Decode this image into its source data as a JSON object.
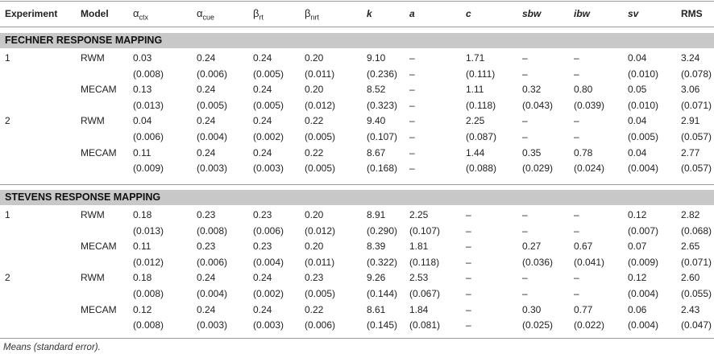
{
  "columns": [
    {
      "key": "experiment",
      "label": "Experiment"
    },
    {
      "key": "model",
      "label": "Model"
    },
    {
      "key": "a_ctx",
      "label": "α",
      "sub": "ctx"
    },
    {
      "key": "a_cue",
      "label": "α",
      "sub": "cue"
    },
    {
      "key": "b_rt",
      "label": "β",
      "sub": "rt"
    },
    {
      "key": "b_nrt",
      "label": "β",
      "sub": "nrt"
    },
    {
      "key": "k",
      "label": "k"
    },
    {
      "key": "a",
      "label": "a"
    },
    {
      "key": "c",
      "label": "c"
    },
    {
      "key": "sbw",
      "label": "sbw"
    },
    {
      "key": "ibw",
      "label": "ibw"
    },
    {
      "key": "sv",
      "label": "sv"
    },
    {
      "key": "rms",
      "label": "RMS"
    }
  ],
  "sections": [
    {
      "title": "FECHNER RESPONSE MAPPING",
      "rows": [
        {
          "cells": [
            "1",
            "RWM",
            "0.03",
            "0.24",
            "0.24",
            "0.20",
            "9.10",
            "–",
            "1.71",
            "–",
            "–",
            "0.04",
            "3.24"
          ]
        },
        {
          "cells": [
            "",
            "",
            "(0.008)",
            "(0.006)",
            "(0.005)",
            "(0.011)",
            "(0.236)",
            "–",
            "(0.111)",
            "–",
            "–",
            "(0.010)",
            "(0.078)"
          ]
        },
        {
          "cells": [
            "",
            "MECAM",
            "0.13",
            "0.24",
            "0.24",
            "0.20",
            "8.52",
            "–",
            "1.11",
            "0.32",
            "0.80",
            "0.05",
            "3.06"
          ]
        },
        {
          "cells": [
            "",
            "",
            "(0.013)",
            "(0.005)",
            "(0.005)",
            "(0.012)",
            "(0.323)",
            "–",
            "(0.118)",
            "(0.043)",
            "(0.039)",
            "(0.010)",
            "(0.071)"
          ]
        },
        {
          "cells": [
            "2",
            "RWM",
            "0.04",
            "0.24",
            "0.24",
            "0.22",
            "9.40",
            "–",
            "2.25",
            "–",
            "–",
            "0.04",
            "2.91"
          ]
        },
        {
          "cells": [
            "",
            "",
            "(0.006)",
            "(0.004)",
            "(0.002)",
            "(0.005)",
            "(0.107)",
            "–",
            "(0.087)",
            "–",
            "–",
            "(0.005)",
            "(0.057)"
          ]
        },
        {
          "cells": [
            "",
            "MECAM",
            "0.11",
            "0.24",
            "0.24",
            "0.22",
            "8.67",
            "–",
            "1.44",
            "0.35",
            "0.78",
            "0.04",
            "2.77"
          ]
        },
        {
          "cells": [
            "",
            "",
            "(0.009)",
            "(0.003)",
            "(0.003)",
            "(0.005)",
            "(0.168)",
            "–",
            "(0.088)",
            "(0.029)",
            "(0.024)",
            "(0.004)",
            "(0.057)"
          ]
        }
      ]
    },
    {
      "title": "STEVENS RESPONSE MAPPING",
      "rows": [
        {
          "cells": [
            "1",
            "RWM",
            "0.18",
            "0.23",
            "0.23",
            "0.20",
            "8.91",
            "2.25",
            "–",
            "–",
            "–",
            "0.12",
            "2.82"
          ]
        },
        {
          "cells": [
            "",
            "",
            "(0.013)",
            "(0.008)",
            "(0.006)",
            "(0.012)",
            "(0.290)",
            "(0.107)",
            "–",
            "–",
            "–",
            "(0.007)",
            "(0.068)"
          ]
        },
        {
          "cells": [
            "",
            "MECAM",
            "0.11",
            "0.23",
            "0.23",
            "0.20",
            "8.39",
            "1.81",
            "–",
            "0.27",
            "0.67",
            "0.07",
            "2.65"
          ]
        },
        {
          "cells": [
            "",
            "",
            "(0.012)",
            "(0.006)",
            "(0.004)",
            "(0.011)",
            "(0.322)",
            "(0.118)",
            "–",
            "(0.036)",
            "(0.041)",
            "(0.009)",
            "(0.071)"
          ]
        },
        {
          "cells": [
            "2",
            "RWM",
            "0.18",
            "0.24",
            "0.24",
            "0.23",
            "9.26",
            "2.53",
            "–",
            "–",
            "–",
            "0.12",
            "2.60"
          ]
        },
        {
          "cells": [
            "",
            "",
            "(0.008)",
            "(0.004)",
            "(0.002)",
            "(0.005)",
            "(0.144)",
            "(0.067)",
            "–",
            "–",
            "–",
            "(0.004)",
            "(0.055)"
          ]
        },
        {
          "cells": [
            "",
            "MECAM",
            "0.12",
            "0.24",
            "0.24",
            "0.22",
            "8.61",
            "1.84",
            "–",
            "0.30",
            "0.77",
            "0.06",
            "2.43"
          ]
        },
        {
          "cells": [
            "",
            "",
            "(0.008)",
            "(0.003)",
            "(0.003)",
            "(0.006)",
            "(0.145)",
            "(0.081)",
            "–",
            "(0.025)",
            "(0.022)",
            "(0.004)",
            "(0.047)"
          ]
        }
      ]
    }
  ],
  "footnote": "Means (standard error)."
}
